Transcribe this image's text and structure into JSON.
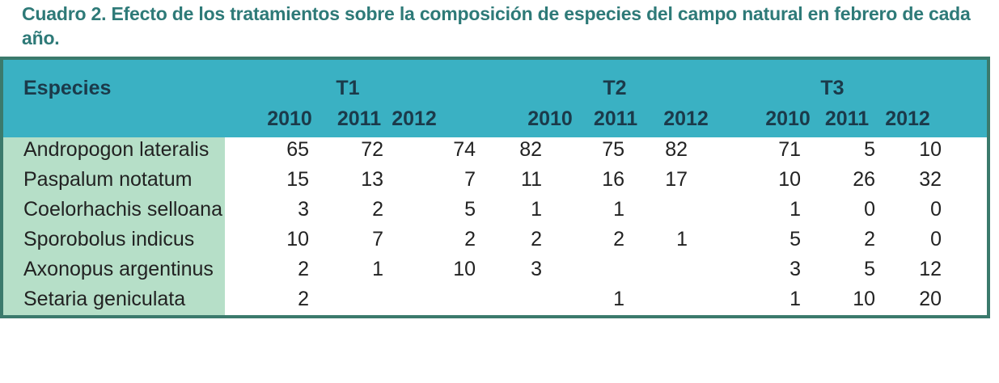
{
  "caption": "Cuadro 2. Efecto de los tratamientos sobre la composición de especies del campo natural en febrero de cada año.",
  "table": {
    "species_header": "Especies",
    "groups": [
      "T1",
      "T2",
      "T3"
    ],
    "years": [
      "2010",
      "2011",
      "2012",
      "2010",
      "2011",
      "2012",
      "2010",
      "2011",
      "2012"
    ],
    "rows": [
      {
        "species": "Andropogon lateralis",
        "values": [
          "65",
          "72",
          "74",
          "82",
          "75",
          "82",
          "71",
          "5",
          "10"
        ]
      },
      {
        "species": "Paspalum notatum",
        "values": [
          "15",
          "13",
          "7",
          "11",
          "16",
          "17",
          "10",
          "26",
          "32"
        ]
      },
      {
        "species": "Coelorhachis selloana",
        "values": [
          "3",
          "2",
          "5",
          "1",
          "1",
          "",
          "1",
          "0",
          "0"
        ]
      },
      {
        "species": "Sporobolus indicus",
        "values": [
          "10",
          "7",
          "2",
          "2",
          "2",
          "1",
          "5",
          "2",
          "0"
        ]
      },
      {
        "species": "Axonopus argentinus",
        "values": [
          "2",
          "1",
          "10",
          "3",
          "",
          "",
          "3",
          "5",
          "12"
        ]
      },
      {
        "species": "Setaria geniculata",
        "values": [
          "2",
          "",
          "",
          "",
          "1",
          "",
          "1",
          "10",
          "20"
        ]
      }
    ]
  }
}
